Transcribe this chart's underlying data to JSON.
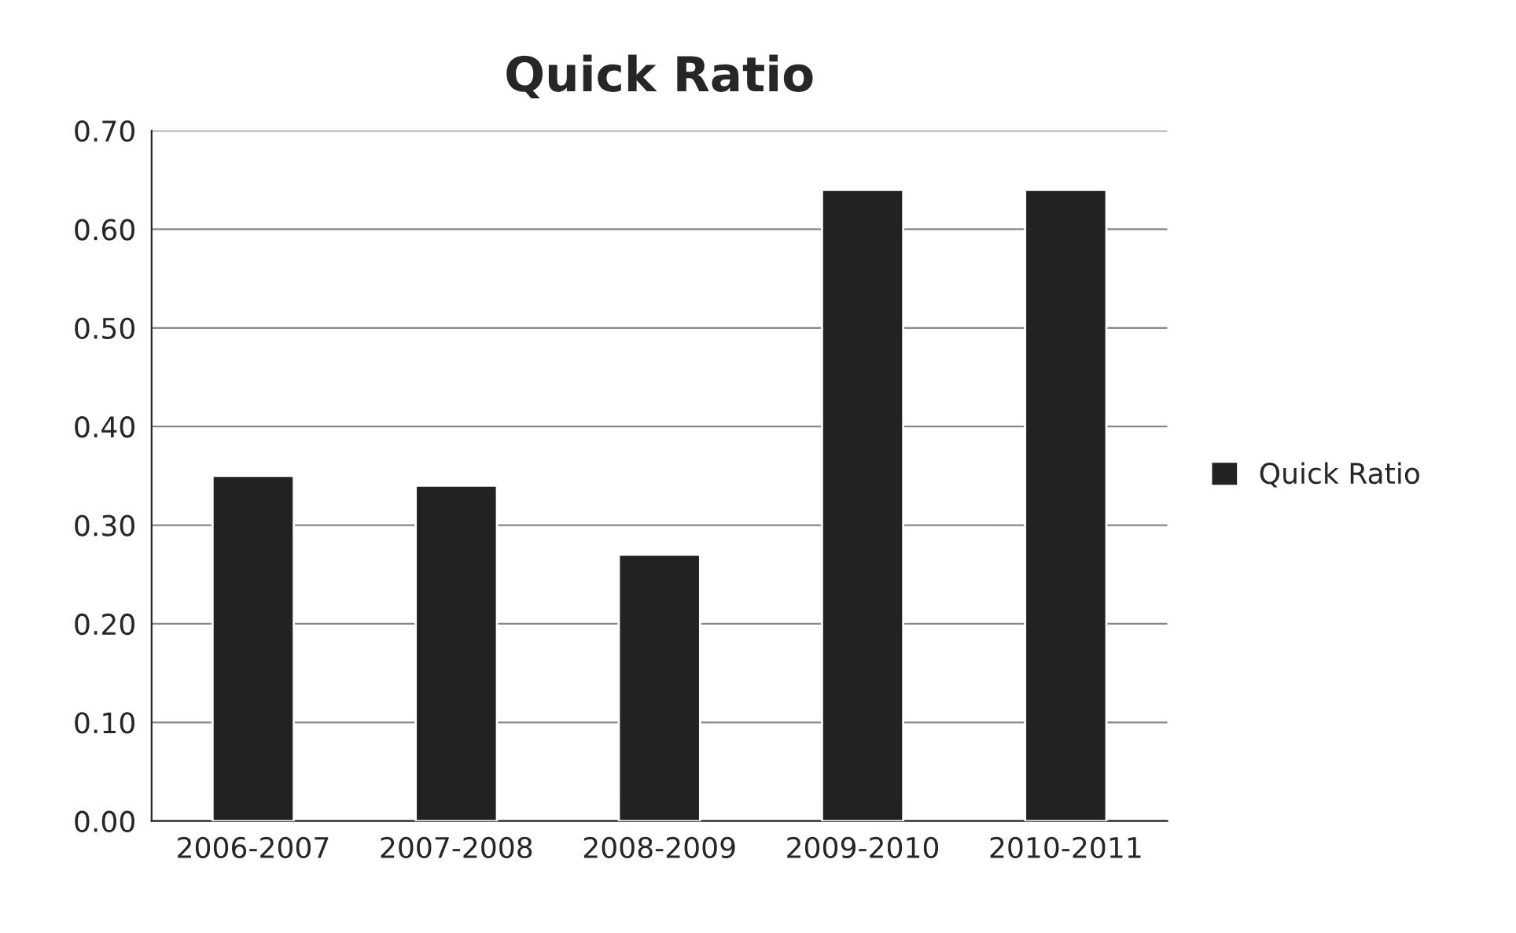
{
  "chart_data": {
    "type": "bar",
    "title": "Quick Ratio",
    "categories": [
      "2006-2007",
      "2007-2008",
      "2008-2009",
      "2009-2010",
      "2010-2011"
    ],
    "series": [
      {
        "name": "Quick Ratio",
        "color": "#222222",
        "values": [
          0.35,
          0.34,
          0.27,
          0.64,
          0.64
        ]
      }
    ],
    "ylim": [
      0,
      0.7
    ],
    "yticks": [
      {
        "value": 0,
        "label": "0.00"
      },
      {
        "value": 0.1,
        "label": "0.10"
      },
      {
        "value": 0.2,
        "label": "0.20"
      },
      {
        "value": 0.3,
        "label": "0.30"
      },
      {
        "value": 0.4,
        "label": "0.40"
      },
      {
        "value": 0.5,
        "label": "0.50"
      },
      {
        "value": 0.6,
        "label": "0.60"
      },
      {
        "value": 0.7,
        "label": "0.70"
      }
    ],
    "grid": "y",
    "legend": "right"
  }
}
